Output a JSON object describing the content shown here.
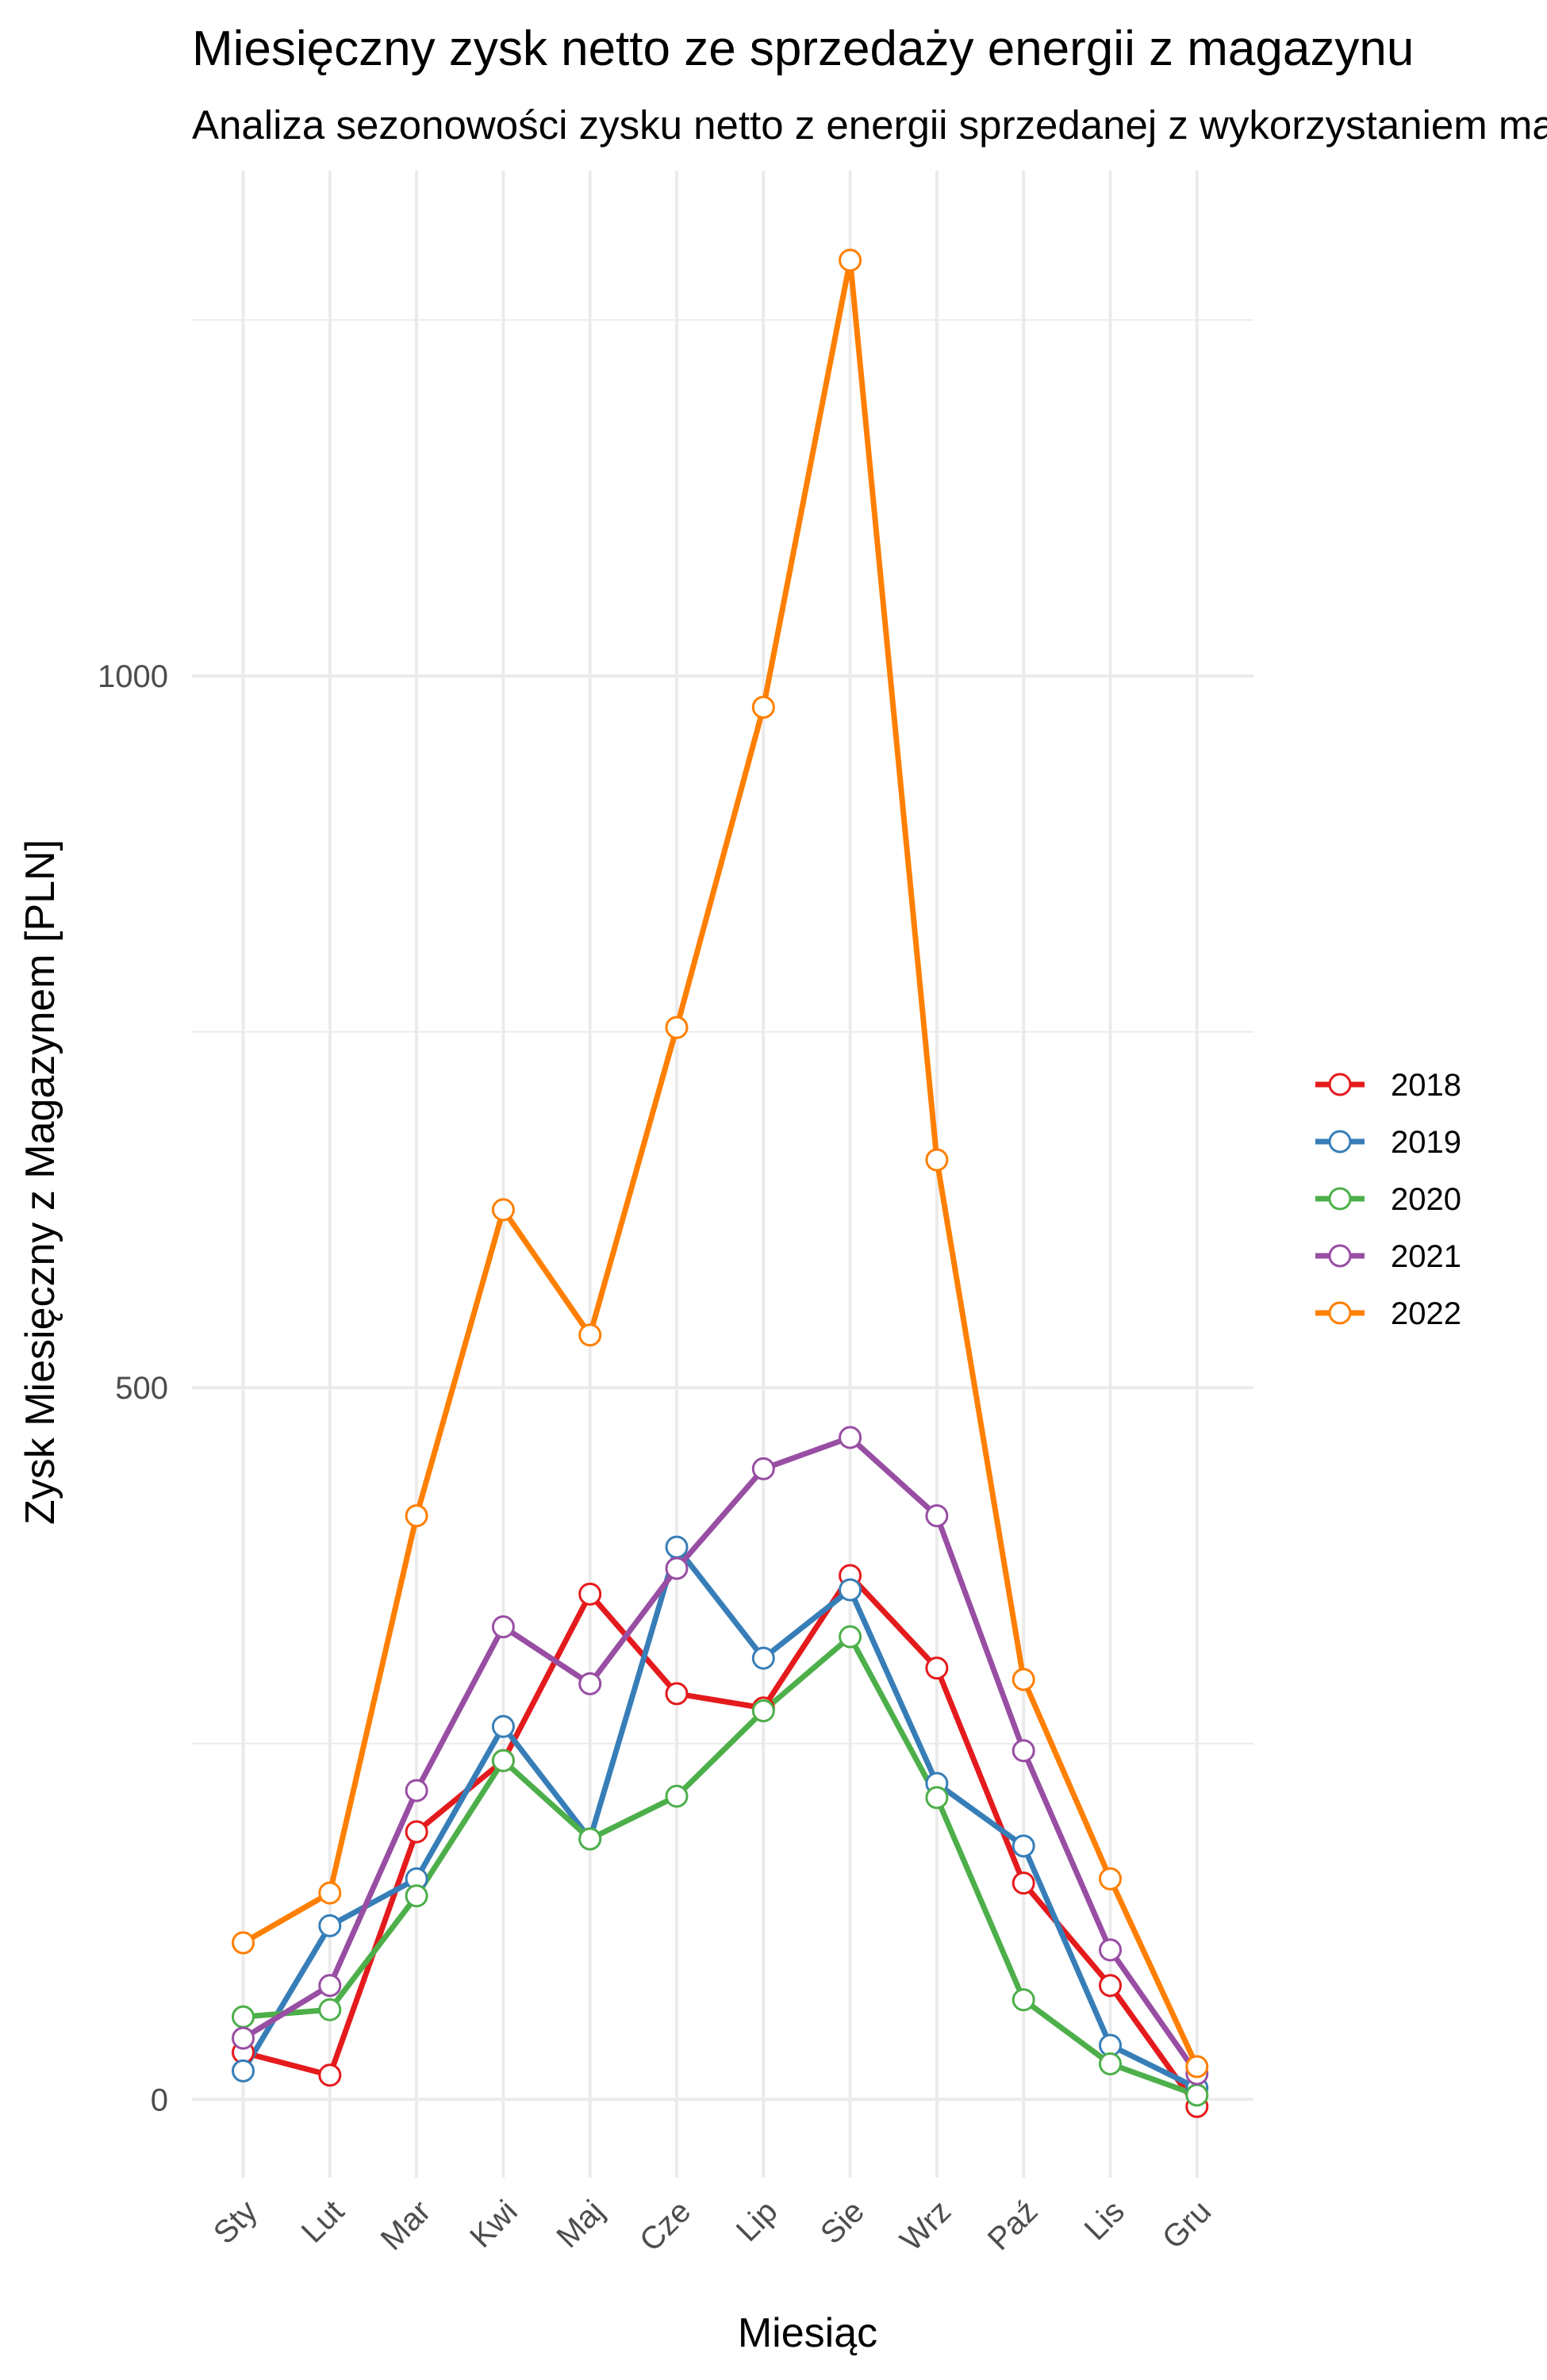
{
  "chart_data": {
    "type": "line",
    "title": "Miesięczny zysk netto ze sprzedaży energii z magazynu",
    "subtitle": "Analiza sezonowości zysku netto z energii sprzedanej z wykorzystaniem magazynu",
    "xlabel": "Miesiąc",
    "ylabel": "Zysk Miesięczny z Magazynem [PLN]",
    "categories": [
      "Sty",
      "Lut",
      "Mar",
      "Kwi",
      "Maj",
      "Cze",
      "Lip",
      "Sie",
      "Wrz",
      "Paź",
      "Lis",
      "Gru"
    ],
    "y_ticks": [
      0,
      500,
      1000
    ],
    "ylim": [
      -55,
      1355
    ],
    "grid": true,
    "legend_position": "right",
    "series": [
      {
        "name": "2018",
        "color": "#e41a1c",
        "values": [
          33,
          17,
          188,
          238,
          355,
          285,
          275,
          368,
          303,
          152,
          80,
          -5
        ]
      },
      {
        "name": "2019",
        "color": "#377eb8",
        "values": [
          20,
          122,
          155,
          262,
          183,
          388,
          310,
          358,
          222,
          178,
          38,
          8
        ]
      },
      {
        "name": "2020",
        "color": "#4daf4a",
        "values": [
          58,
          63,
          143,
          238,
          183,
          213,
          273,
          325,
          212,
          70,
          25,
          3
        ]
      },
      {
        "name": "2021",
        "color": "#984ea3",
        "values": [
          43,
          80,
          217,
          332,
          292,
          373,
          443,
          465,
          410,
          245,
          105,
          18
        ]
      },
      {
        "name": "2022",
        "color": "#ff7f00",
        "values": [
          110,
          145,
          410,
          625,
          537,
          753,
          978,
          1292,
          660,
          295,
          155,
          23
        ]
      }
    ]
  }
}
